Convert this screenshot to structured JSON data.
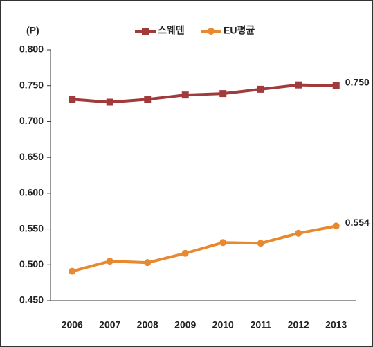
{
  "chart_data": {
    "type": "line",
    "unit_label": "(P)",
    "categories": [
      "2006",
      "2007",
      "2008",
      "2009",
      "2010",
      "2011",
      "2012",
      "2013"
    ],
    "series": [
      {
        "name": "스웨덴",
        "color": "#a13b3b",
        "marker": "square",
        "values": [
          0.731,
          0.727,
          0.731,
          0.737,
          0.739,
          0.745,
          0.751,
          0.75
        ],
        "value_labels": [
          null,
          null,
          null,
          null,
          null,
          null,
          null,
          "0.750"
        ]
      },
      {
        "name": "EU평균",
        "color": "#e8892f",
        "marker": "circle",
        "values": [
          0.491,
          0.505,
          0.503,
          0.516,
          0.531,
          0.53,
          0.544,
          0.554
        ],
        "value_labels": [
          null,
          null,
          null,
          null,
          null,
          null,
          null,
          "0.554"
        ]
      }
    ],
    "ylim": [
      0.45,
      0.8
    ],
    "yticks": [
      {
        "value": 0.45,
        "label": "0.450"
      },
      {
        "value": 0.5,
        "label": "0.500"
      },
      {
        "value": 0.55,
        "label": "0.550"
      },
      {
        "value": 0.6,
        "label": "0.600"
      },
      {
        "value": 0.65,
        "label": "0.650"
      },
      {
        "value": 0.7,
        "label": "0.700"
      },
      {
        "value": 0.75,
        "label": "0.750"
      },
      {
        "value": 0.8,
        "label": "0.800"
      }
    ],
    "grid": false,
    "legend": "top"
  }
}
